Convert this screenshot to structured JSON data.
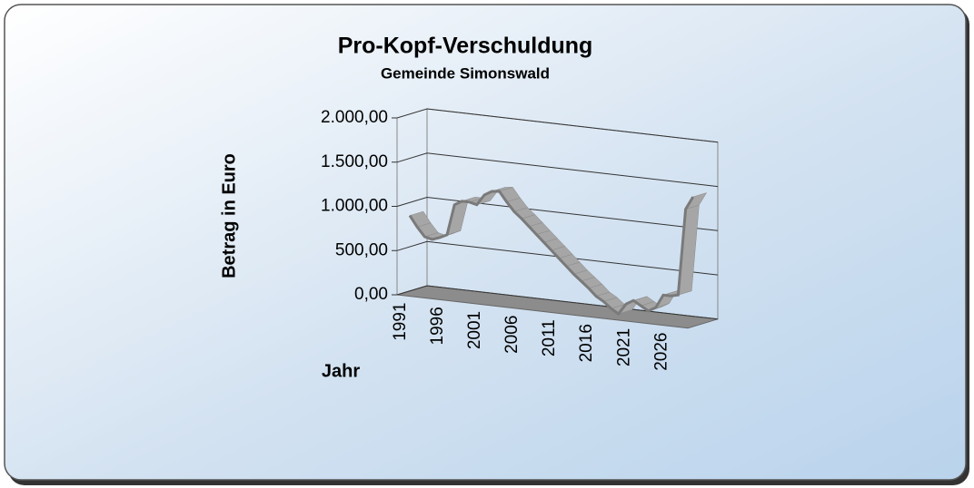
{
  "chart_data": {
    "type": "line3d",
    "title": "Pro-Kopf-Verschuldung",
    "subtitle": "Gemeinde Simonswald",
    "y_label": "Betrag in Euro",
    "x_label": "Jahr",
    "categories": [
      "1991",
      null,
      null,
      null,
      null,
      "1996",
      null,
      null,
      null,
      null,
      "2001",
      null,
      null,
      null,
      null,
      "2006",
      null,
      null,
      null,
      null,
      "2011",
      null,
      null,
      null,
      null,
      "2016",
      null,
      null,
      null,
      null,
      "2021",
      null,
      null,
      null,
      null,
      "2026",
      null,
      null,
      null
    ],
    "series": [
      {
        "name": "Pro-Kopf-Verschuldung",
        "color": "#a6a6a6",
        "values": [
          870,
          750,
          650,
          630,
          660,
          700,
          1050,
          1100,
          1100,
          1080,
          1200,
          1250,
          1260,
          1150,
          1050,
          980,
          900,
          820,
          740,
          660,
          580,
          500,
          420,
          350,
          280,
          200,
          150,
          80,
          30,
          150,
          200,
          150,
          100,
          150,
          300,
          300,
          320,
          1300,
          1450
        ]
      }
    ],
    "ylim": [
      0,
      2000
    ],
    "yticks": [
      {
        "value": 0,
        "label": "0,00"
      },
      {
        "value": 500,
        "label": "500,00"
      },
      {
        "value": 1000,
        "label": "1.000,00"
      },
      {
        "value": 1500,
        "label": "1.500,00"
      },
      {
        "value": 2000,
        "label": "2.000,00"
      }
    ],
    "grid": true
  }
}
